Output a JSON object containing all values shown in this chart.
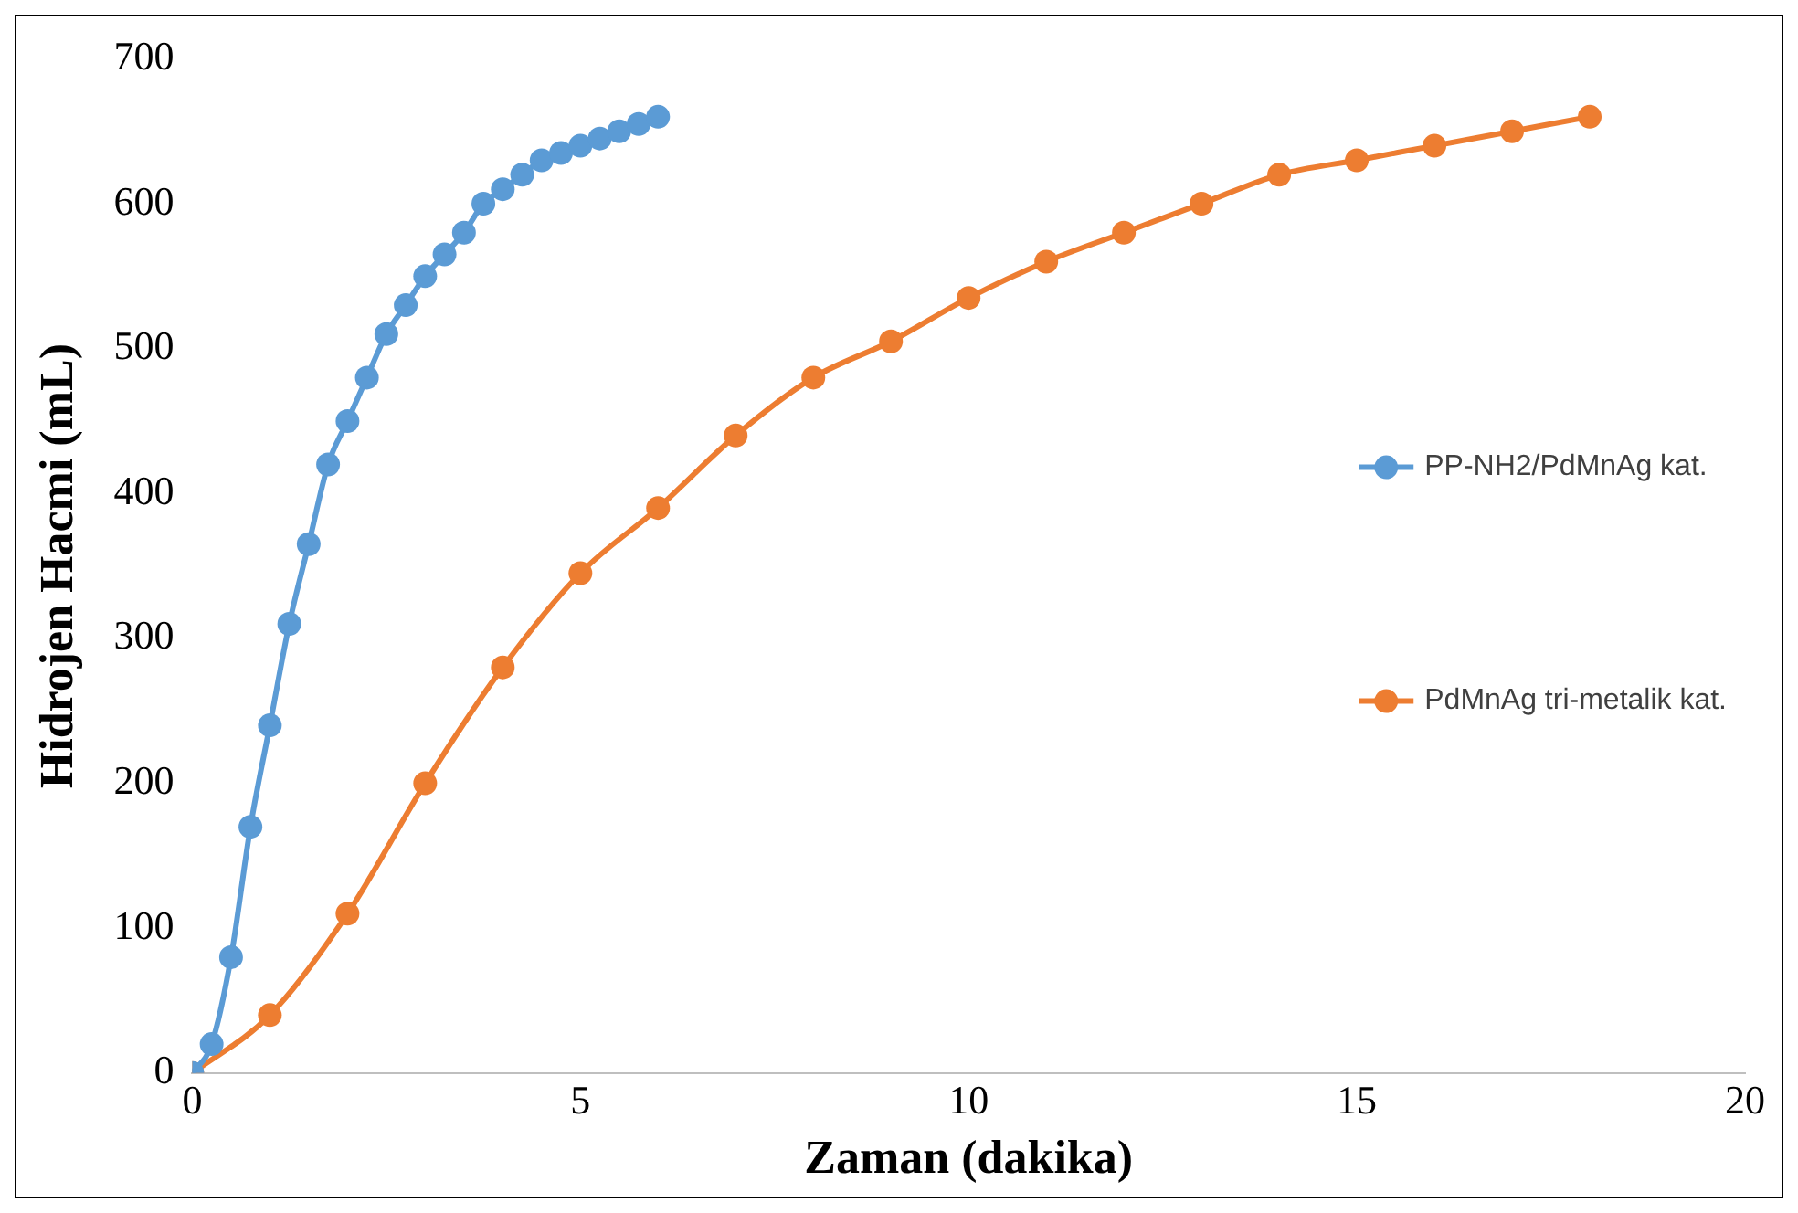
{
  "chart_data": {
    "type": "line",
    "xlabel": "Zaman (dakika)",
    "ylabel": "Hidrojen Hacmi (mL)",
    "xlim": [
      0,
      20
    ],
    "xticks": [
      0,
      5,
      10,
      15,
      20
    ],
    "ylim": [
      0,
      700
    ],
    "yticks": [
      0,
      100,
      200,
      300,
      400,
      500,
      600,
      700
    ],
    "grid": false,
    "legend": "right",
    "marker": "circle",
    "line_style": "solid",
    "series": [
      {
        "name": "PP-NH2/PdMnAg kat.",
        "color": "#5b9bd5",
        "x": [
          0,
          0.25,
          0.5,
          0.75,
          1,
          1.25,
          1.5,
          1.75,
          2,
          2.25,
          2.5,
          2.75,
          3,
          3.25,
          3.5,
          3.75,
          4,
          4.25,
          4.5,
          4.75,
          5,
          5.25,
          5.5,
          5.75,
          6
        ],
        "values": [
          0,
          20,
          80,
          170,
          240,
          310,
          365,
          420,
          450,
          480,
          510,
          530,
          550,
          565,
          580,
          600,
          610,
          620,
          630,
          635,
          640,
          645,
          650,
          655,
          660
        ]
      },
      {
        "name": "PdMnAg tri-metalik kat.",
        "color": "#ed7d31",
        "x": [
          0,
          1,
          2,
          3,
          4,
          5,
          6,
          7,
          8,
          9,
          10,
          11,
          12,
          13,
          14,
          15,
          16,
          17,
          18
        ],
        "values": [
          0,
          40,
          110,
          200,
          280,
          345,
          390,
          440,
          480,
          505,
          535,
          560,
          580,
          600,
          620,
          630,
          640,
          650,
          660
        ]
      }
    ]
  }
}
